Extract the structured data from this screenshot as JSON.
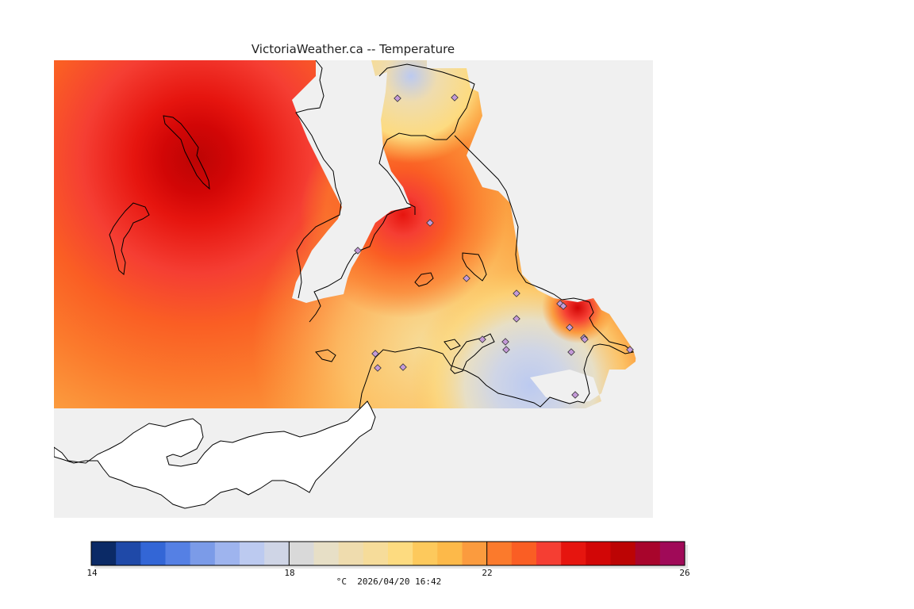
{
  "title": "VictoriaWeather.ca -- Temperature",
  "legend": {
    "ticks": [
      "14",
      "18",
      "22",
      "26"
    ],
    "caption": "°C  2026/04/20 16:42",
    "colors": [
      "#0b2a66",
      "#1f49a8",
      "#3366d6",
      "#5580e4",
      "#7b9be8",
      "#9eb4ee",
      "#bccaf0",
      "#cfd5e6",
      "#d9d9d9",
      "#e7dfc6",
      "#efdcae",
      "#f6dc9a",
      "#fddb80",
      "#fdc95c",
      "#fdb949",
      "#fb9b3e",
      "#fb7a2c",
      "#fa5e24",
      "#f53e33",
      "#e6150f",
      "#d20606",
      "#bc0404",
      "#a8052c",
      "#a00a58"
    ]
  },
  "stations": [
    [
      383,
      240
    ],
    [
      505,
      47
    ],
    [
      433,
      48
    ],
    [
      474,
      205
    ],
    [
      520,
      275
    ],
    [
      569,
      355
    ],
    [
      570,
      365
    ],
    [
      583,
      326
    ],
    [
      638,
      307
    ],
    [
      642,
      310
    ],
    [
      650,
      337
    ],
    [
      652,
      368
    ],
    [
      657,
      422
    ],
    [
      668,
      350
    ],
    [
      669,
      352
    ],
    [
      405,
      370
    ],
    [
      408,
      388
    ],
    [
      440,
      387
    ],
    [
      540,
      352
    ],
    [
      726,
      365
    ],
    [
      583,
      294
    ]
  ]
}
